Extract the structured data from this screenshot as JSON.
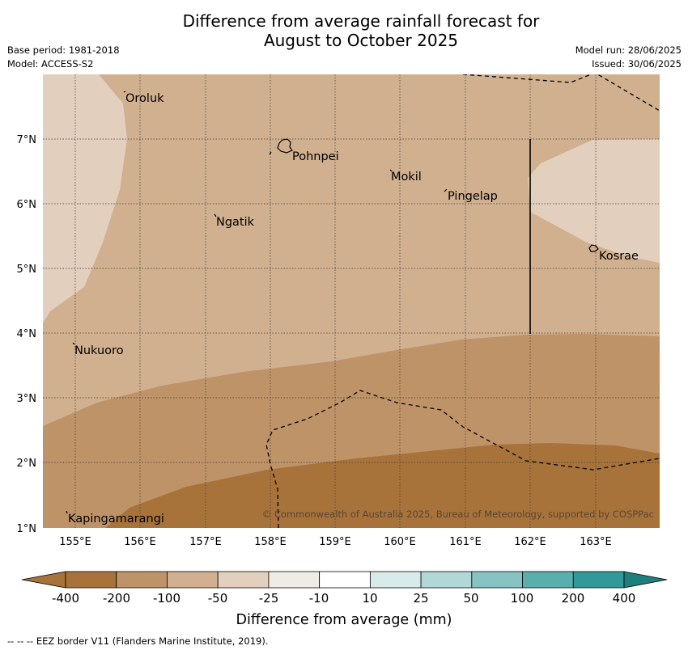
{
  "title_line1": "Difference from average rainfall forecast for",
  "title_line2": "August to October 2025",
  "meta_left": [
    "Base period: 1981-2018",
    "Model: ACCESS-S2"
  ],
  "meta_right": [
    "Model run: 28/06/2025",
    "Issued: 30/06/2025"
  ],
  "copyright": "© Commonwealth of Australia 2025, Bureau of Meteorology, supported by COSPPac",
  "x_ticks": [
    "155°E",
    "156°E",
    "157°E",
    "158°E",
    "159°E",
    "160°E",
    "161°E",
    "162°E",
    "163°E"
  ],
  "y_ticks": [
    "7°N",
    "6°N",
    "5°N",
    "4°N",
    "3°N",
    "2°N",
    "1°N"
  ],
  "places": [
    {
      "name": "Oroluk",
      "lon": 155.75,
      "lat": 7.6
    },
    {
      "name": "Pohnpei",
      "lon": 158.35,
      "lat": 6.85
    },
    {
      "name": "Mokil",
      "lon": 159.85,
      "lat": 6.4
    },
    {
      "name": "Pingelap",
      "lon": 160.75,
      "lat": 6.2
    },
    {
      "name": "Ngatik",
      "lon": 157.2,
      "lat": 5.8
    },
    {
      "name": "Kosrae",
      "lon": 163.0,
      "lat": 5.3
    },
    {
      "name": "Nukuoro",
      "lon": 154.95,
      "lat": 3.85
    },
    {
      "name": "Kapingamarangi",
      "lon": 154.8,
      "lat": 1.05
    }
  ],
  "colorbar": {
    "title": "Difference from average (mm)",
    "labels": [
      "-400",
      "-200",
      "-100",
      "-50",
      "-25",
      "-10",
      "10",
      "25",
      "50",
      "100",
      "200",
      "400"
    ],
    "colors": [
      "#a8733b",
      "#be9368",
      "#d0b08f",
      "#e2cfbd",
      "#efebe7",
      "#ffffff",
      "#d8ebea",
      "#b1d7d6",
      "#86c3c2",
      "#5aaeac",
      "#319a98",
      "#1f7f7d"
    ]
  },
  "fill_colors": {
    "-100_to_-50": "#d0b08f",
    "-50_to_-25": "#e2cfbd",
    "-200_to_-100": "#be9368",
    "-400_to_-200": "#a8733b"
  },
  "footnote": "--  --  -- EEZ border V11 (Flanders Marine Institute, 2019)."
}
